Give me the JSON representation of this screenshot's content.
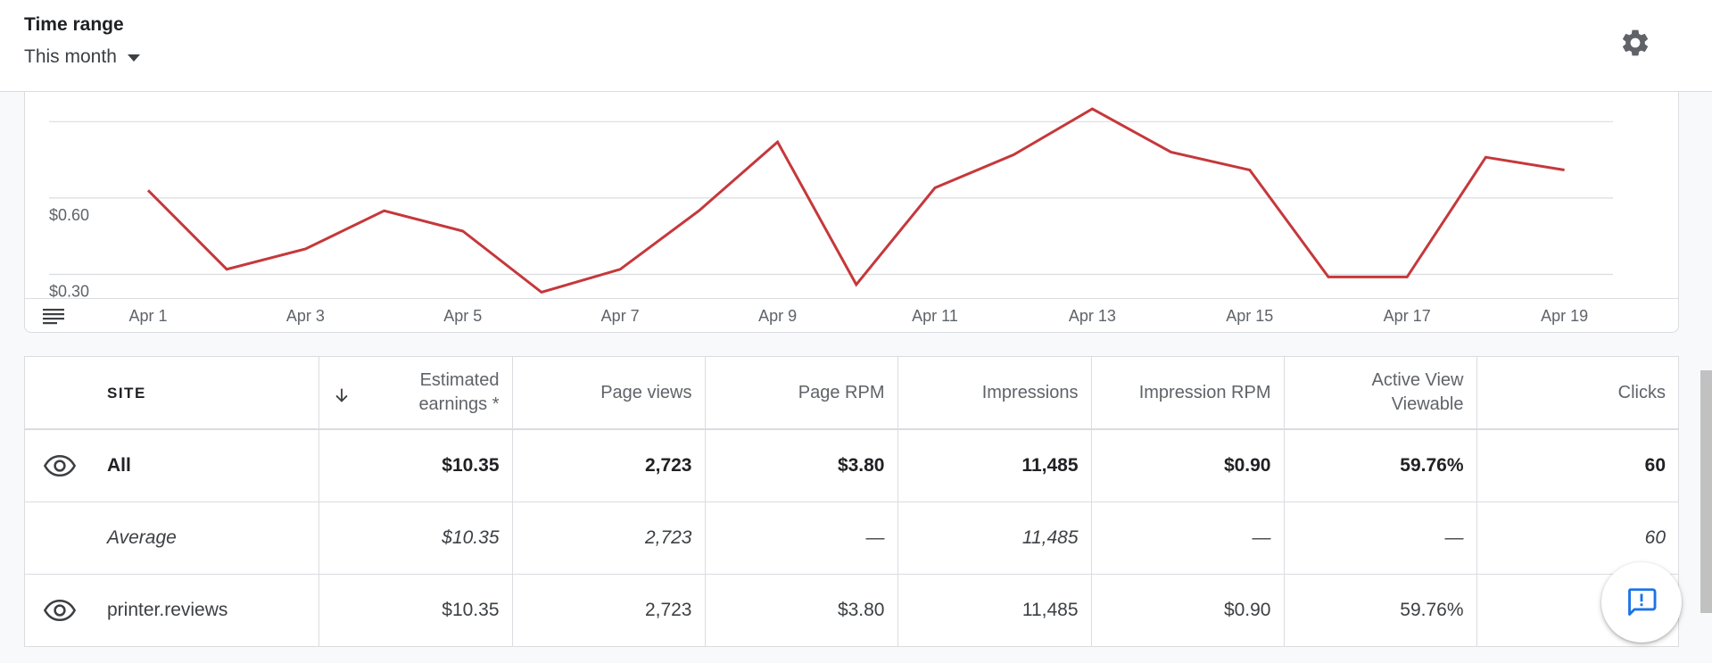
{
  "header": {
    "time_range_label": "Time range",
    "time_range_value": "This month"
  },
  "icons": {
    "settings": "gear-icon",
    "table_toggle": "table-view-icon",
    "visibility": "eye-icon",
    "sort": "arrow-down-icon",
    "feedback": "feedback-icon"
  },
  "chart_data": {
    "type": "line",
    "x_tick_labels": [
      "Apr 1",
      "Apr 3",
      "Apr 5",
      "Apr 7",
      "Apr 9",
      "Apr 11",
      "Apr 13",
      "Apr 15",
      "Apr 17",
      "Apr 19"
    ],
    "y_tick_labels": [
      "$0.30",
      "$0.60"
    ],
    "grid": true,
    "color": "#c5383b",
    "series": [
      {
        "x": [
          "Apr 1",
          "Apr 2",
          "Apr 3",
          "Apr 4",
          "Apr 5",
          "Apr 6",
          "Apr 7",
          "Apr 8",
          "Apr 9",
          "Apr 10",
          "Apr 11",
          "Apr 12",
          "Apr 13",
          "Apr 14",
          "Apr 15",
          "Apr 16",
          "Apr 17",
          "Apr 18",
          "Apr 19"
        ],
        "values": [
          0.63,
          0.32,
          0.4,
          0.55,
          0.47,
          0.23,
          0.32,
          0.55,
          0.82,
          0.26,
          0.64,
          0.77,
          0.95,
          0.78,
          0.71,
          0.29,
          0.29,
          0.76,
          0.71
        ]
      }
    ]
  },
  "table": {
    "columns": [
      {
        "label": "SITE"
      },
      {
        "label": "Estimated earnings *"
      },
      {
        "label": "Page views"
      },
      {
        "label": "Page RPM"
      },
      {
        "label": "Impressions"
      },
      {
        "label": "Impression RPM"
      },
      {
        "label": "Active View Viewable"
      },
      {
        "label": "Clicks"
      }
    ],
    "rows": [
      {
        "site": "All",
        "earnings": "$10.35",
        "page_views": "2,723",
        "page_rpm": "$3.80",
        "impressions": "11,485",
        "impression_rpm": "$0.90",
        "active_view": "59.76%",
        "clicks": "60"
      },
      {
        "site": "Average",
        "earnings": "$10.35",
        "page_views": "2,723",
        "page_rpm": "—",
        "impressions": "11,485",
        "impression_rpm": "—",
        "active_view": "—",
        "clicks": "60"
      },
      {
        "site": "printer.reviews",
        "earnings": "$10.35",
        "page_views": "2,723",
        "page_rpm": "$3.80",
        "impressions": "11,485",
        "impression_rpm": "$0.90",
        "active_view": "59.76%",
        "clicks": ""
      }
    ]
  }
}
